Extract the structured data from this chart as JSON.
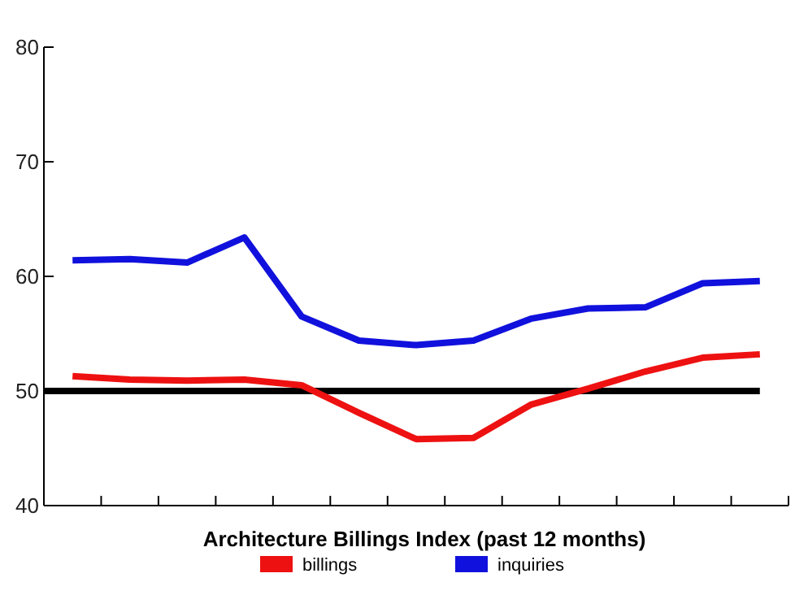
{
  "chart_data": {
    "type": "line",
    "xlabel": "Architecture Billings Index (past 12 months)",
    "categories": [
      null,
      null,
      null,
      null,
      null,
      null,
      null,
      null,
      null,
      null,
      null,
      null,
      null
    ],
    "series": [
      {
        "name": "billings",
        "color": "#ee1111",
        "values": [
          51.3,
          51.0,
          50.9,
          51.0,
          50.5,
          48.1,
          45.8,
          45.9,
          48.8,
          50.2,
          51.7,
          52.9,
          53.2
        ]
      },
      {
        "name": "inquiries",
        "color": "#1111dd",
        "values": [
          61.4,
          61.5,
          61.2,
          63.4,
          56.5,
          54.4,
          54.0,
          54.4,
          56.3,
          57.2,
          57.3,
          59.4,
          59.6
        ]
      }
    ],
    "ylim": [
      40,
      80
    ],
    "yticks": [
      40,
      50,
      60,
      70,
      80
    ],
    "ref_lines": [
      {
        "axis": "y",
        "value": 50,
        "color": "#000000"
      }
    ],
    "legend": "bottom",
    "marker": "none",
    "line_style": "solid"
  }
}
